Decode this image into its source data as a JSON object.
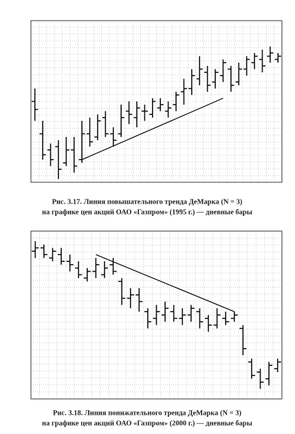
{
  "chart_data": [
    {
      "type": "ohlc",
      "title": "Рис. 3.17. Линия повышательного тренда ДеМарка (N = 3)",
      "subtitle": "на графике цен акций ОАО «Газпром» (1995 г.) — дневные бары",
      "ylim": [
        0,
        100
      ],
      "high": [
        58,
        38,
        24,
        26,
        28,
        28,
        38,
        40,
        42,
        44,
        34,
        48,
        50,
        50,
        48,
        52,
        52,
        50,
        56,
        64,
        70,
        78,
        72,
        70,
        76,
        72,
        74,
        78,
        80,
        82,
        84,
        80
      ],
      "low": [
        38,
        14,
        10,
        2,
        10,
        6,
        12,
        22,
        26,
        28,
        22,
        28,
        36,
        34,
        38,
        40,
        44,
        40,
        44,
        48,
        54,
        60,
        56,
        58,
        62,
        56,
        60,
        66,
        70,
        68,
        74,
        74
      ],
      "open": [
        50,
        30,
        20,
        22,
        12,
        20,
        14,
        30,
        28,
        40,
        30,
        30,
        44,
        40,
        44,
        42,
        46,
        44,
        48,
        56,
        58,
        64,
        68,
        62,
        66,
        70,
        62,
        70,
        74,
        76,
        78,
        76
      ],
      "close": [
        45,
        17,
        14,
        8,
        20,
        10,
        30,
        25,
        38,
        30,
        26,
        40,
        42,
        46,
        44,
        50,
        48,
        46,
        54,
        58,
        66,
        70,
        60,
        68,
        74,
        60,
        70,
        76,
        78,
        72,
        80,
        78
      ],
      "trend_line": {
        "x": [
          7,
          25
        ],
        "values": [
          14,
          52
        ]
      }
    },
    {
      "type": "ohlc",
      "title": "Рис. 3.18. Линия понижательного тренда ДеМарка (N = 3)",
      "subtitle": "на графике цен акций ОАО «Газпром» (2000 г.) — дневные бары",
      "ylim": [
        0,
        100
      ],
      "high": [
        94,
        92,
        90,
        90,
        86,
        82,
        78,
        84,
        82,
        84,
        72,
        66,
        66,
        54,
        56,
        58,
        56,
        54,
        56,
        54,
        50,
        54,
        52,
        52,
        44,
        24,
        18,
        22,
        24
      ],
      "low": [
        84,
        84,
        82,
        80,
        76,
        72,
        70,
        72,
        72,
        74,
        56,
        54,
        52,
        42,
        44,
        46,
        46,
        44,
        46,
        42,
        40,
        42,
        44,
        46,
        26,
        12,
        6,
        8,
        16
      ],
      "open": [
        88,
        90,
        84,
        86,
        82,
        78,
        72,
        76,
        74,
        80,
        70,
        60,
        62,
        52,
        48,
        50,
        52,
        48,
        50,
        52,
        48,
        44,
        48,
        48,
        42,
        22,
        16,
        12,
        18
      ],
      "close": [
        90,
        86,
        88,
        82,
        80,
        74,
        76,
        80,
        78,
        76,
        60,
        62,
        58,
        46,
        52,
        54,
        48,
        50,
        54,
        46,
        44,
        50,
        46,
        50,
        30,
        14,
        10,
        20,
        22
      ],
      "trend_line": {
        "x": [
          8,
          24
        ],
        "values": [
          86,
          52
        ]
      }
    }
  ]
}
